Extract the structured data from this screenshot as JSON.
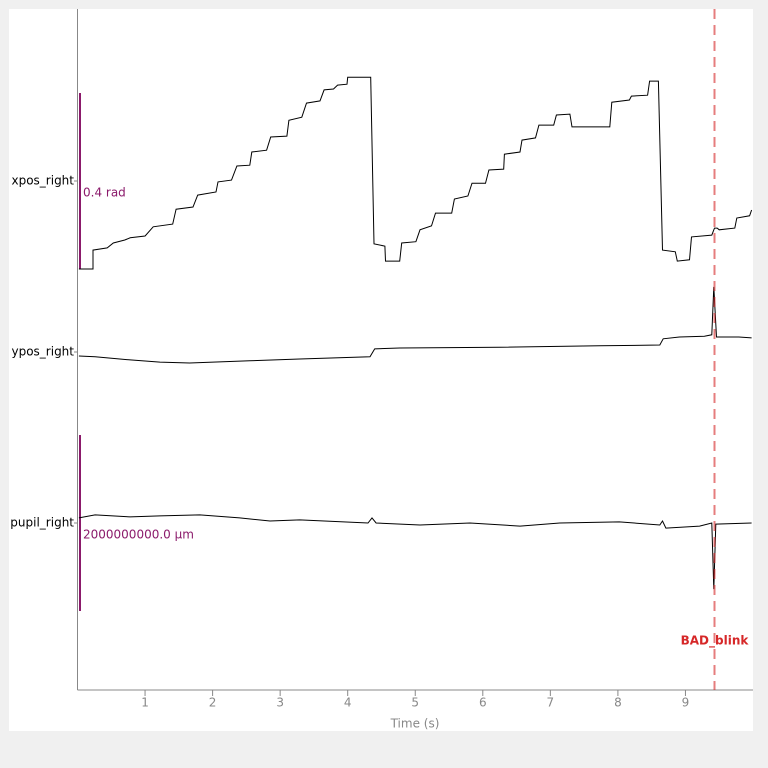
{
  "chart_data": {
    "type": "traces",
    "xlabel": "Time (s)",
    "xlim": [
      0,
      10
    ],
    "xticks": [
      1,
      2,
      3,
      4,
      5,
      6,
      7,
      8,
      9
    ],
    "series": [
      {
        "name": "xpos_right",
        "color": "#000000",
        "scale_bar": {
          "value": 0.4,
          "label": "0.4 rad"
        },
        "x": [
          0.02,
          0.23,
          0.23,
          0.44,
          0.53,
          0.7,
          0.78,
          1.0,
          1.12,
          1.41,
          1.46,
          1.71,
          1.78,
          2.05,
          2.08,
          2.28,
          2.36,
          2.55,
          2.58,
          2.8,
          2.86,
          3.1,
          3.13,
          3.32,
          3.39,
          3.59,
          3.65,
          3.79,
          3.85,
          3.99,
          4.0,
          4.34,
          4.39,
          4.55,
          4.56,
          4.77,
          4.8,
          5.01,
          5.07,
          5.24,
          5.3,
          5.54,
          5.58,
          5.78,
          5.84,
          6.04,
          6.09,
          6.31,
          6.32,
          6.55,
          6.58,
          6.78,
          6.83,
          7.05,
          7.09,
          7.29,
          7.32,
          7.88,
          7.91,
          8.17,
          8.2,
          8.44,
          8.47,
          8.6,
          8.66,
          8.85,
          8.88,
          9.06,
          9.09,
          9.39,
          9.43,
          9.47,
          9.5,
          9.73,
          9.76,
          9.95,
          9.98
        ],
        "values": [
          -0.2,
          -0.2,
          -0.157,
          -0.152,
          -0.141,
          -0.134,
          -0.129,
          -0.125,
          -0.104,
          -0.098,
          -0.064,
          -0.059,
          -0.032,
          -0.025,
          -0.002,
          0.002,
          0.034,
          0.036,
          0.066,
          0.07,
          0.1,
          0.102,
          0.138,
          0.145,
          0.177,
          0.182,
          0.207,
          0.209,
          0.218,
          0.22,
          0.236,
          0.236,
          -0.143,
          -0.148,
          -0.182,
          -0.182,
          -0.141,
          -0.138,
          -0.111,
          -0.102,
          -0.073,
          -0.073,
          -0.041,
          -0.034,
          -0.005,
          -0.005,
          0.025,
          0.027,
          0.061,
          0.066,
          0.093,
          0.098,
          0.127,
          0.127,
          0.15,
          0.152,
          0.123,
          0.123,
          0.179,
          0.184,
          0.193,
          0.195,
          0.227,
          0.227,
          -0.157,
          -0.161,
          -0.182,
          -0.179,
          -0.127,
          -0.123,
          -0.107,
          -0.107,
          -0.111,
          -0.107,
          -0.084,
          -0.079,
          -0.066
        ]
      },
      {
        "name": "ypos_right",
        "color": "#000000",
        "x": [
          0.02,
          0.26,
          0.78,
          1.22,
          1.66,
          2.55,
          3.29,
          4.33,
          4.4,
          4.77,
          6.25,
          7.73,
          8.62,
          8.67,
          8.91,
          9.28,
          9.39,
          9.42,
          9.46,
          9.79,
          9.98
        ],
        "values": [
          -0.009,
          -0.011,
          -0.018,
          -0.023,
          -0.025,
          -0.02,
          -0.016,
          -0.011,
          0.007,
          0.009,
          0.011,
          0.014,
          0.016,
          0.03,
          0.034,
          0.036,
          0.039,
          0.148,
          0.034,
          0.034,
          0.032
        ]
      },
      {
        "name": "pupil_right",
        "color": "#000000",
        "scale_bar": {
          "value": 2000000000,
          "label": "2000000000.0 µm"
        },
        "x": [
          0.02,
          0.26,
          0.78,
          1.22,
          1.81,
          2.4,
          2.85,
          3.29,
          4.3,
          4.36,
          4.42,
          5.07,
          5.81,
          6.55,
          7.14,
          8.02,
          8.62,
          8.66,
          8.71,
          9.21,
          9.39,
          9.42,
          9.45,
          9.98
        ],
        "values": [
          58000000,
          92000000,
          69000000,
          81000000,
          92000000,
          58000000,
          23000000,
          35000000,
          0,
          58000000,
          0,
          -23000000,
          0,
          -35000000,
          0,
          12000000,
          -23000000,
          23000000,
          -58000000,
          -35000000,
          0,
          -751000000,
          -12000000,
          0
        ]
      }
    ],
    "annotations": [
      {
        "x": 9.43,
        "label": "BAD_blink",
        "color": "#d62728"
      }
    ],
    "scale_bar_color": "#8b1a6b"
  }
}
